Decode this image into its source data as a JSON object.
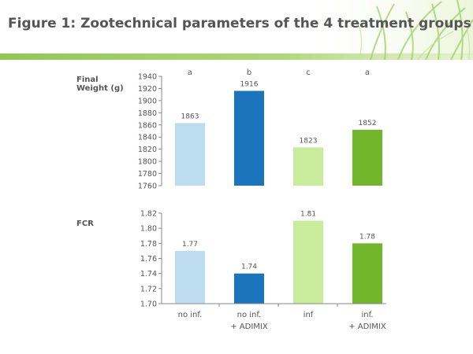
{
  "title": "Figure 1: Zootechnical parameters of the 4 treatment groups",
  "colors": {
    "title": "#555555",
    "header_green": "#8bc34a",
    "axis": "#8a8a8a",
    "bar_1": "#bcdcf0",
    "bar_2": "#1a75bd",
    "bar_3": "#c9ec9c",
    "bar_4": "#72b62c"
  },
  "chart_data": [
    {
      "type": "bar",
      "ylabel": "Final\nWeight (g)",
      "categories": [
        "no inf.",
        "no inf.\n+ ADIMIX",
        "inf",
        "inf.\n+ ADIMIX"
      ],
      "values": [
        1863,
        1916,
        1823,
        1852
      ],
      "data_labels": [
        "1863",
        "1916",
        "1823",
        "1852"
      ],
      "significance": [
        "a",
        "b",
        "c",
        "a"
      ],
      "ylim": [
        1760,
        1940
      ],
      "yticks": [
        "1760",
        "1780",
        "1800",
        "1820",
        "1840",
        "1860",
        "1880",
        "1900",
        "1920",
        "1940"
      ],
      "grid": false
    },
    {
      "type": "bar",
      "ylabel": "FCR",
      "categories": [
        "no inf.",
        "no inf.\n+ ADIMIX",
        "inf",
        "inf.\n+ ADIMIX"
      ],
      "values": [
        1.77,
        1.74,
        1.81,
        1.78
      ],
      "data_labels": [
        "1.77",
        "1.74",
        "1.81",
        "1.78"
      ],
      "ylim": [
        1.7,
        1.82
      ],
      "yticks": [
        "1.70",
        "1.72",
        "1.74",
        "1.76",
        "1.78",
        "1.80",
        "1.82"
      ],
      "grid": false
    }
  ]
}
